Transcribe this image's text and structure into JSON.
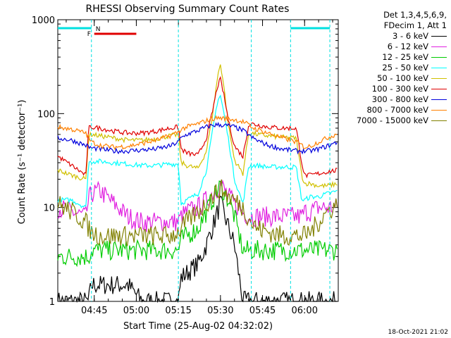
{
  "chart_data": {
    "type": "line",
    "title": "RHESSI Observing Summary Count Rates",
    "xlabel": "Start Time (25-Aug-02 04:32:02)",
    "ylabel": "Count Rate (s⁻¹ detector⁻¹)",
    "yscale": "log",
    "ylim": [
      1,
      1000
    ],
    "xlim_minutes": [
      0,
      100
    ],
    "x_ticks": [
      {
        "label": "04:45",
        "t": 13
      },
      {
        "label": "05:00",
        "t": 28
      },
      {
        "label": "05:15",
        "t": 43
      },
      {
        "label": "05:30",
        "t": 58
      },
      {
        "label": "05:45",
        "t": 73
      },
      {
        "label": "06:00",
        "t": 88
      }
    ],
    "y_ticks": [
      {
        "label": "1",
        "v": 1
      },
      {
        "label": "10",
        "v": 10
      },
      {
        "label": "100",
        "v": 100
      },
      {
        "label": "1000",
        "v": 1000
      }
    ],
    "legend_header": [
      "Det 1,3,4,5,6,9,",
      "FDecim 1, Att 1"
    ],
    "x": [
      0,
      5,
      10,
      11,
      12,
      15,
      20,
      25,
      30,
      35,
      40,
      43,
      44,
      46,
      50,
      53,
      55,
      57,
      58,
      59,
      61,
      63,
      66,
      68,
      69,
      71,
      75,
      80,
      85,
      87,
      88,
      90,
      93,
      96,
      100
    ],
    "series": [
      {
        "name": "3 - 6 keV",
        "color": "#000000",
        "values": [
          1,
          1,
          1,
          1,
          1.5,
          1.5,
          1.5,
          1.5,
          1,
          1,
          1,
          1,
          1.8,
          2,
          2.5,
          4,
          6,
          9,
          11,
          9,
          6,
          4,
          1,
          1,
          1,
          1,
          1,
          1,
          1,
          1,
          1,
          1,
          1,
          1,
          1
        ]
      },
      {
        "name": "6 - 12 keV",
        "color": "#e020e0",
        "values": [
          10,
          9,
          8,
          12,
          14,
          15,
          11,
          8,
          7,
          7,
          7,
          7,
          8,
          9,
          10,
          12,
          14,
          16,
          18,
          16,
          13,
          11,
          9,
          8,
          8,
          8,
          8,
          8,
          8,
          8,
          9,
          9,
          10,
          10,
          10
        ]
      },
      {
        "name": "12 - 25 keV",
        "color": "#00cc00",
        "values": [
          3,
          3,
          3,
          3,
          3.5,
          3.5,
          3.5,
          3.5,
          3.5,
          3.5,
          3.5,
          3.5,
          4.5,
          5,
          6,
          9,
          12,
          15,
          17,
          15,
          12,
          8,
          3.5,
          3.5,
          3.5,
          3.5,
          3.5,
          3.5,
          3.5,
          3.5,
          3.5,
          3.5,
          3.5,
          3.5,
          3.5
        ]
      },
      {
        "name": "25 - 50 keV",
        "color": "#00ffff",
        "values": [
          12,
          12,
          10,
          30,
          31,
          31,
          30,
          29,
          28,
          28,
          29,
          29,
          11,
          12,
          14,
          25,
          60,
          140,
          155,
          110,
          50,
          20,
          11,
          27,
          28,
          28,
          27,
          27,
          27,
          12,
          12,
          13,
          13,
          14,
          15
        ]
      },
      {
        "name": "50 - 100 keV",
        "color": "#d0c000",
        "values": [
          25,
          22,
          20,
          58,
          60,
          58,
          55,
          52,
          52,
          54,
          58,
          60,
          30,
          28,
          26,
          40,
          90,
          250,
          340,
          220,
          70,
          32,
          23,
          60,
          62,
          60,
          58,
          56,
          55,
          22,
          18,
          18,
          17,
          17,
          18
        ]
      },
      {
        "name": "100 - 300 keV",
        "color": "#e00000",
        "values": [
          35,
          28,
          22,
          70,
          72,
          70,
          65,
          62,
          62,
          65,
          70,
          72,
          42,
          38,
          36,
          55,
          100,
          200,
          230,
          170,
          80,
          45,
          35,
          75,
          78,
          76,
          72,
          70,
          70,
          30,
          22,
          22,
          23,
          24,
          25
        ]
      },
      {
        "name": "300 - 800 keV",
        "color": "#0000dd",
        "values": [
          55,
          52,
          46,
          44,
          43,
          42,
          40,
          40,
          41,
          42,
          45,
          50,
          55,
          60,
          66,
          72,
          75,
          76,
          76,
          75,
          74,
          72,
          66,
          60,
          56,
          52,
          46,
          42,
          40,
          40,
          40,
          40,
          42,
          45,
          50
        ]
      },
      {
        "name": "800 - 7000 keV",
        "color": "#ff8000",
        "values": [
          72,
          68,
          62,
          55,
          50,
          46,
          44,
          45,
          48,
          52,
          58,
          64,
          68,
          72,
          78,
          84,
          88,
          90,
          90,
          89,
          88,
          86,
          82,
          76,
          72,
          68,
          62,
          55,
          50,
          46,
          44,
          45,
          50,
          55,
          62
        ]
      },
      {
        "name": "7000 - 15000 keV",
        "color": "#808000",
        "values": [
          11,
          9,
          7,
          6,
          5.5,
          5,
          5,
          5,
          5,
          5,
          5,
          5.5,
          6,
          7,
          9,
          11,
          13,
          15,
          16,
          15,
          13,
          12,
          10,
          8,
          7,
          6,
          5.5,
          5,
          5,
          5,
          5,
          5.5,
          7,
          9,
          11
        ]
      }
    ],
    "annotations": {
      "night_bars": [
        {
          "t0": 0,
          "t1": 12
        },
        {
          "t0": 83,
          "t1": 97
        }
      ],
      "night_label": "N",
      "flare_bar": {
        "t0": 13,
        "t1": 28
      },
      "flare_label": "F",
      "attenuator_lines": [
        12,
        43,
        69,
        83,
        97
      ]
    },
    "legend_placement": "right",
    "grid": false
  },
  "footer_timestamp": "18-Oct-2021 21:02"
}
